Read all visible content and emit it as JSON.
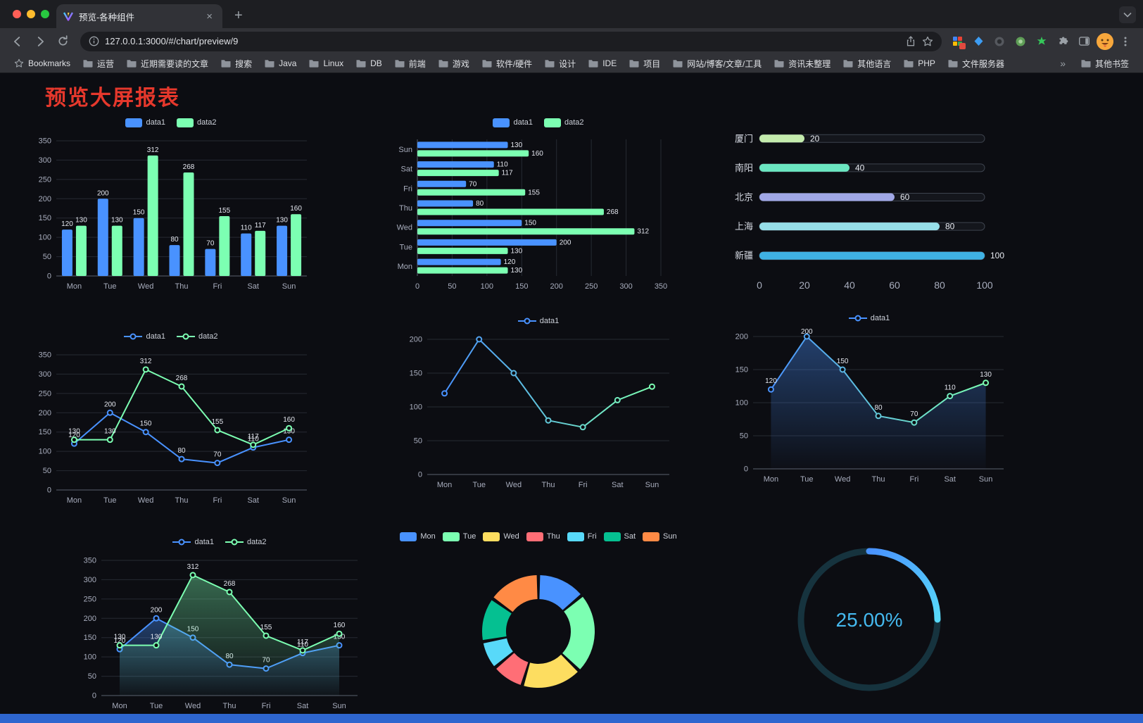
{
  "browser": {
    "tab_title": "预览-各种组件",
    "url": "127.0.0.1:3000/#/chart/preview/9",
    "bookmarks_bar": {
      "bookmarks_label": "Bookmarks",
      "folders": [
        "运营",
        "近期需要读的文章",
        "搜索",
        "Java",
        "Linux",
        "DB",
        "前端",
        "游戏",
        "软件/硬件",
        "设计",
        "IDE",
        "项目",
        "网站/博客/文章/工具",
        "资讯未整理",
        "其他语言",
        "PHP",
        "文件服务器"
      ],
      "overflow": "»",
      "other_bookmarks": "其他书签"
    }
  },
  "page": {
    "title": "预览大屏报表",
    "title_color": "#e6382c",
    "background": "#0c0d12",
    "footer_color": "#2e66cf"
  },
  "chart_data": [
    {
      "type": "bar",
      "categories": [
        "Mon",
        "Tue",
        "Wed",
        "Thu",
        "Fri",
        "Sat",
        "Sun"
      ],
      "series": [
        {
          "name": "data1",
          "color": "#4992ff",
          "values": [
            120,
            200,
            150,
            80,
            70,
            110,
            130
          ]
        },
        {
          "name": "data2",
          "color": "#7cffb2",
          "values": [
            130,
            130,
            312,
            268,
            155,
            117,
            160
          ]
        }
      ],
      "ylim": [
        0,
        350
      ],
      "yticks": [
        0,
        50,
        100,
        150,
        200,
        250,
        300,
        350
      ],
      "labels": true,
      "grid": true,
      "legend_position": "top"
    },
    {
      "type": "hbar",
      "categories": [
        "Mon",
        "Tue",
        "Wed",
        "Thu",
        "Fri",
        "Sat",
        "Sun"
      ],
      "series": [
        {
          "name": "data1",
          "color": "#4992ff",
          "values": [
            120,
            200,
            150,
            80,
            70,
            110,
            130
          ]
        },
        {
          "name": "data2",
          "color": "#7cffb2",
          "values": [
            130,
            130,
            312,
            268,
            155,
            117,
            160
          ]
        }
      ],
      "xlim": [
        0,
        350
      ],
      "xticks": [
        0,
        50,
        100,
        150,
        200,
        250,
        300,
        350
      ],
      "labels": true,
      "grid": true,
      "legend_position": "top"
    },
    {
      "type": "capsule",
      "categories": [
        "厦门",
        "南阳",
        "北京",
        "上海",
        "新疆"
      ],
      "values": [
        20,
        40,
        60,
        80,
        100
      ],
      "colors": [
        "#c4ebad",
        "#6be6c1",
        "#a0a7e6",
        "#96dee8",
        "#3fb1e3"
      ],
      "xlim": [
        0,
        100
      ],
      "xticks": [
        0,
        20,
        40,
        60,
        80,
        100
      ]
    },
    {
      "type": "line",
      "categories": [
        "Mon",
        "Tue",
        "Wed",
        "Thu",
        "Fri",
        "Sat",
        "Sun"
      ],
      "series": [
        {
          "name": "data1",
          "color": "#4992ff",
          "values": [
            120,
            200,
            150,
            80,
            70,
            110,
            130
          ]
        },
        {
          "name": "data2",
          "color": "#7cffb2",
          "values": [
            130,
            130,
            312,
            268,
            155,
            117,
            160
          ]
        }
      ],
      "ylim": [
        0,
        350
      ],
      "yticks": [
        0,
        50,
        100,
        150,
        200,
        250,
        300,
        350
      ],
      "labels": true,
      "grid": true,
      "legend_position": "top"
    },
    {
      "type": "line",
      "categories": [
        "Mon",
        "Tue",
        "Wed",
        "Thu",
        "Fri",
        "Sat",
        "Sun"
      ],
      "series": [
        {
          "name": "data1",
          "gradient": [
            "#4992ff",
            "#7cffb2"
          ],
          "values": [
            120,
            200,
            150,
            80,
            70,
            110,
            130
          ]
        }
      ],
      "ylim": [
        0,
        200
      ],
      "yticks": [
        0,
        50,
        100,
        150,
        200
      ],
      "labels": false,
      "grid": true,
      "legend_position": "top"
    },
    {
      "type": "line",
      "categories": [
        "Mon",
        "Tue",
        "Wed",
        "Thu",
        "Fri",
        "Sat",
        "Sun"
      ],
      "series": [
        {
          "name": "data1",
          "gradient": [
            "#4992ff",
            "#7cffb2"
          ],
          "area": true,
          "values": [
            120,
            200,
            150,
            80,
            70,
            110,
            130
          ]
        }
      ],
      "ylim": [
        0,
        200
      ],
      "yticks": [
        0,
        50,
        100,
        150,
        200
      ],
      "labels": true,
      "grid": true,
      "legend_position": "top"
    },
    {
      "type": "line",
      "categories": [
        "Mon",
        "Tue",
        "Wed",
        "Thu",
        "Fri",
        "Sat",
        "Sun"
      ],
      "series": [
        {
          "name": "data1",
          "color": "#4992ff",
          "area": true,
          "values": [
            120,
            200,
            150,
            80,
            70,
            110,
            130
          ]
        },
        {
          "name": "data2",
          "color": "#7cffb2",
          "area": true,
          "values": [
            130,
            130,
            312,
            268,
            155,
            117,
            160
          ]
        }
      ],
      "ylim": [
        0,
        350
      ],
      "yticks": [
        0,
        50,
        100,
        150,
        200,
        250,
        300,
        350
      ],
      "labels": true,
      "grid": true,
      "legend_position": "top"
    },
    {
      "type": "donut",
      "categories": [
        "Mon",
        "Tue",
        "Wed",
        "Thu",
        "Fri",
        "Sat",
        "Sun"
      ],
      "values": [
        120,
        200,
        150,
        80,
        70,
        110,
        130
      ],
      "colors": [
        "#4992ff",
        "#7cffb2",
        "#fddd60",
        "#ff6e76",
        "#58d9f9",
        "#05c091",
        "#ff8a45"
      ],
      "legend_position": "top"
    },
    {
      "type": "gauge",
      "value": 25,
      "label": "25.00%",
      "track_color": "#16333e",
      "start_color": "#4992ff",
      "end_color": "#58d9f9",
      "text_color": "#45b9ef"
    }
  ]
}
